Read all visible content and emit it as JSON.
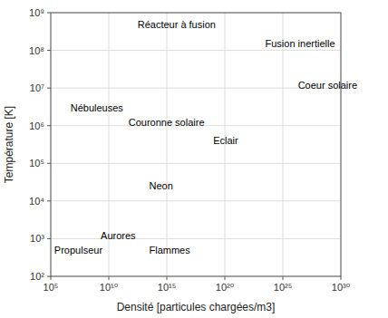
{
  "chart_data": {
    "type": "text",
    "xlabel": "Densité [particules chargées/m3]",
    "ylabel": "Température [K]",
    "log": true,
    "grid": true,
    "xlim": [
      100000.0,
      1e+30
    ],
    "ylim": [
      100.0,
      1000000000.0
    ],
    "xticks": [
      {
        "value": 100000.0,
        "label": "10⁵"
      },
      {
        "value": 10000000000.0,
        "label": "10¹⁰"
      },
      {
        "value": 1000000000000000.0,
        "label": "10¹⁵"
      },
      {
        "value": 1e+20,
        "label": "10²⁰"
      },
      {
        "value": 1e+25,
        "label": "10²⁵"
      },
      {
        "value": 1e+30,
        "label": "10³⁰"
      }
    ],
    "yticks": [
      {
        "value": 100.0,
        "label": "10²"
      },
      {
        "value": 1000.0,
        "label": "10³"
      },
      {
        "value": 10000.0,
        "label": "10⁴"
      },
      {
        "value": 100000.0,
        "label": "10⁵"
      },
      {
        "value": 1000000.0,
        "label": "10⁶"
      },
      {
        "value": 10000000.0,
        "label": "10⁷"
      },
      {
        "value": 100000000.0,
        "label": "10⁸"
      },
      {
        "value": 1000000000.0,
        "label": "10⁹"
      }
    ],
    "annotations": [
      {
        "text": "Réacteur à fusion",
        "x": 3000000000000.0,
        "y": 500000000.0
      },
      {
        "text": "Fusion inertielle",
        "x": 3e+23,
        "y": 150000000.0
      },
      {
        "text": "Coeur solaire",
        "x": 2e+26,
        "y": 12000000.0
      },
      {
        "text": "Nébuleuses",
        "x": 5000000.0,
        "y": 3000000.0
      },
      {
        "text": "Couronne solaire",
        "x": 500000000000.0,
        "y": 1200000.0
      },
      {
        "text": "Eclair",
        "x": 1e+19,
        "y": 400000.0
      },
      {
        "text": "Neon",
        "x": 30000000000000.0,
        "y": 25000.0
      },
      {
        "text": "Aurores",
        "x": 2000000000.0,
        "y": 1200.0
      },
      {
        "text": "Propulseur",
        "x": 200000.0,
        "y": 500.0
      },
      {
        "text": "Flammes",
        "x": 30000000000000.0,
        "y": 500.0
      }
    ],
    "color": "#000000"
  }
}
